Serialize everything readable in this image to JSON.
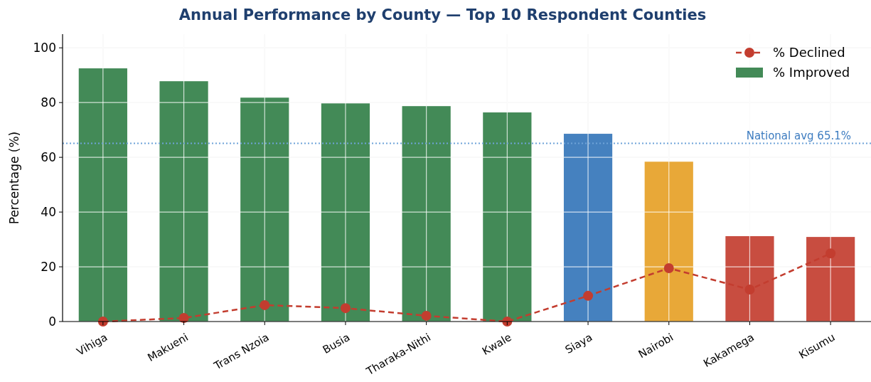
{
  "chart_data": {
    "type": "bar",
    "title": "Annual Performance by County — Top 10 Respondent Counties",
    "ylabel": "Percentage (%)",
    "categories": [
      "Vihiga",
      "Makueni",
      "Trans Nzoia",
      "Busia",
      "Tharaka-Nithi",
      "Kwale",
      "Siaya",
      "Nairobi",
      "Kakamega",
      "Kisumu"
    ],
    "series": [
      {
        "name": "% Declined",
        "type": "line",
        "color": "#c33d2f",
        "line_style": "dashed",
        "marker": "circle",
        "values": [
          0,
          1.3,
          6.0,
          4.9,
          2.1,
          0,
          9.4,
          19.5,
          11.7,
          24.9
        ]
      },
      {
        "name": "% Improved",
        "color": "#438a57",
        "colors": [
          "#438a57",
          "#438a57",
          "#438a57",
          "#438a57",
          "#438a57",
          "#438a57",
          "#4581bf",
          "#e8a838",
          "#c84d40",
          "#c84d40"
        ],
        "values": [
          92.5,
          87.8,
          81.8,
          79.7,
          78.7,
          76.4,
          68.6,
          58.4,
          31.2,
          30.9
        ]
      }
    ],
    "ylim": [
      0,
      105
    ],
    "yticks": [
      0,
      20,
      40,
      60,
      80,
      100
    ],
    "grid": true,
    "legend": "top right",
    "ref_lines": [
      {
        "axis": "y",
        "value": 65.1,
        "label": "National avg 65.1%",
        "color": "#6fa3d8",
        "line_style": "dotted"
      }
    ]
  }
}
